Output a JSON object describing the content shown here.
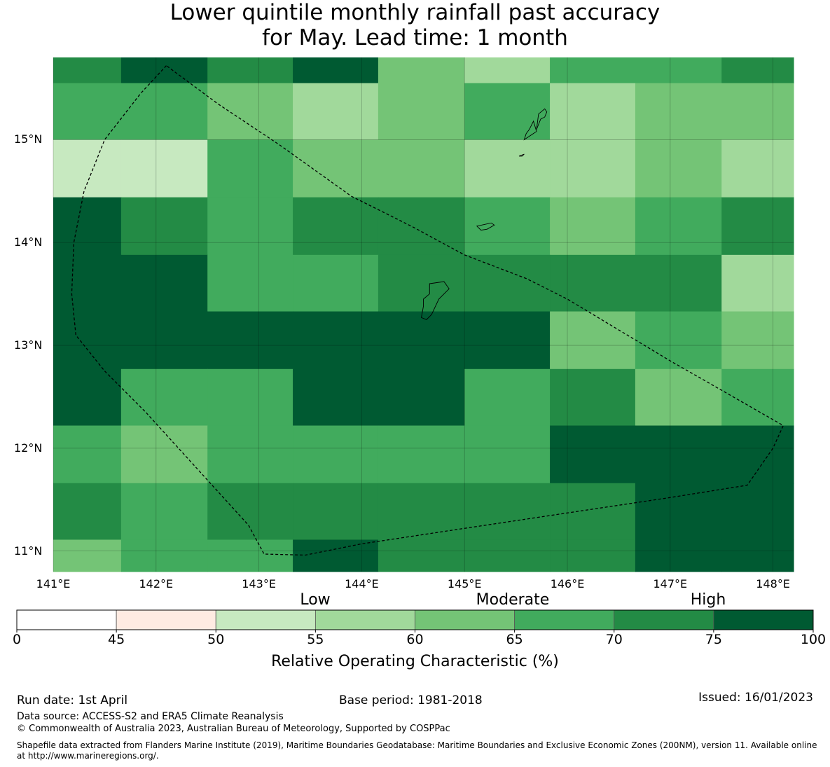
{
  "title_line1": "Lower quintile monthly rainfall past accuracy",
  "title_line2": "for May. Lead time: 1 month",
  "map": {
    "lon_min": 141.0,
    "lon_max": 148.2,
    "lat_min": 10.8,
    "lat_max": 15.8,
    "lat_ticks": [
      "15°N",
      "14°N",
      "13°N",
      "12°N",
      "11°N"
    ],
    "lat_tick_values": [
      15,
      14,
      13,
      12,
      11
    ],
    "lon_ticks": [
      "141°E",
      "142°E",
      "143°E",
      "144°E",
      "145°E",
      "146°E",
      "147°E",
      "148°E"
    ],
    "lon_tick_values": [
      141,
      142,
      143,
      144,
      145,
      146,
      147,
      148
    ],
    "cell_lon_edges": [
      141.0,
      141.66,
      142.5,
      143.33,
      144.16,
      145.0,
      145.83,
      146.66,
      147.5,
      148.2
    ],
    "cell_lat_edges": [
      15.8,
      15.55,
      15.0,
      14.44,
      13.88,
      13.33,
      12.77,
      12.22,
      11.66,
      11.11,
      10.8
    ],
    "roc_grid": [
      [
        72,
        78,
        72,
        78,
        62,
        57,
        67,
        67,
        72
      ],
      [
        67,
        67,
        62,
        57,
        62,
        67,
        57,
        62,
        62
      ],
      [
        53,
        53,
        67,
        62,
        62,
        57,
        57,
        62,
        57
      ],
      [
        78,
        72,
        67,
        72,
        72,
        67,
        62,
        67,
        72
      ],
      [
        78,
        78,
        67,
        67,
        72,
        72,
        72,
        72,
        57
      ],
      [
        78,
        78,
        78,
        78,
        78,
        78,
        62,
        67,
        62
      ],
      [
        78,
        67,
        67,
        78,
        78,
        67,
        72,
        62,
        67
      ],
      [
        67,
        62,
        67,
        67,
        67,
        67,
        78,
        78,
        78
      ],
      [
        72,
        67,
        72,
        72,
        72,
        72,
        72,
        78,
        78
      ],
      [
        62,
        67,
        67,
        78,
        72,
        72,
        72,
        78,
        78
      ]
    ],
    "eez_boundary": [
      [
        142.1,
        15.72
      ],
      [
        141.85,
        15.45
      ],
      [
        141.5,
        15.0
      ],
      [
        141.3,
        14.5
      ],
      [
        141.2,
        14.0
      ],
      [
        141.18,
        13.5
      ],
      [
        141.22,
        13.1
      ],
      [
        141.5,
        12.75
      ],
      [
        141.9,
        12.35
      ],
      [
        142.4,
        11.8
      ],
      [
        142.9,
        11.25
      ],
      [
        143.05,
        10.97
      ],
      [
        143.45,
        10.96
      ],
      [
        144.0,
        11.07
      ],
      [
        145.0,
        11.22
      ],
      [
        146.0,
        11.37
      ],
      [
        147.0,
        11.52
      ],
      [
        147.75,
        11.64
      ],
      [
        148.0,
        12.0
      ],
      [
        148.1,
        12.22
      ],
      [
        147.0,
        12.85
      ],
      [
        146.0,
        13.45
      ],
      [
        145.6,
        13.65
      ],
      [
        145.0,
        13.88
      ],
      [
        144.5,
        14.15
      ],
      [
        143.9,
        14.45
      ],
      [
        143.2,
        14.95
      ],
      [
        142.6,
        15.35
      ],
      [
        142.1,
        15.72
      ]
    ],
    "islands": [
      [
        [
          144.66,
          13.6
        ],
        [
          144.8,
          13.62
        ],
        [
          144.85,
          13.55
        ],
        [
          144.75,
          13.45
        ],
        [
          144.68,
          13.3
        ],
        [
          144.63,
          13.25
        ],
        [
          144.58,
          13.27
        ],
        [
          144.6,
          13.38
        ],
        [
          144.6,
          13.45
        ],
        [
          144.66,
          13.5
        ],
        [
          144.66,
          13.6
        ]
      ],
      [
        [
          145.12,
          14.16
        ],
        [
          145.26,
          14.19
        ],
        [
          145.29,
          14.17
        ],
        [
          145.22,
          14.13
        ],
        [
          145.16,
          14.12
        ],
        [
          145.12,
          14.16
        ]
      ],
      [
        [
          145.58,
          15.0
        ],
        [
          145.7,
          15.08
        ],
        [
          145.67,
          15.18
        ],
        [
          145.63,
          15.1
        ],
        [
          145.6,
          15.06
        ],
        [
          145.58,
          15.0
        ]
      ],
      [
        [
          145.7,
          15.1
        ],
        [
          145.74,
          15.2
        ],
        [
          145.78,
          15.22
        ],
        [
          145.8,
          15.27
        ],
        [
          145.78,
          15.3
        ],
        [
          145.72,
          15.25
        ],
        [
          145.7,
          15.1
        ]
      ],
      [
        [
          145.53,
          14.84
        ],
        [
          145.58,
          14.86
        ],
        [
          145.56,
          14.84
        ],
        [
          145.53,
          14.84
        ]
      ]
    ]
  },
  "category_labels": [
    "Low",
    "Moderate",
    "High"
  ],
  "colorbar": {
    "bounds": [
      0,
      45,
      50,
      55,
      60,
      65,
      70,
      75,
      100
    ],
    "tick_labels": [
      "0",
      "45",
      "50",
      "55",
      "60",
      "65",
      "70",
      "75",
      "100"
    ],
    "colors": [
      "#ffffff",
      "#ffebe2",
      "#c7e9c0",
      "#a1d99b",
      "#74c476",
      "#41ab5d",
      "#238b45",
      "#005a32"
    ],
    "title": "Relative Operating Characteristic (%)"
  },
  "footer": {
    "run_date": "Run date: 1st April",
    "base_period": "Base period: 1981-2018",
    "issued": "Issued: 16/01/2023",
    "data_source": "Data source: ACCESS-S2 and ERA5 Climate Reanalysis",
    "copyright": "© Commonwealth of Australia 2023, Australian Bureau of Meteorology, Supported by COSPPac",
    "shapefile": "Shapefile data extracted from Flanders Marine Institute (2019), Maritime Boundaries Geodatabase: Maritime Boundaries and Exclusive Economic Zones (200NM), version 11. Available online at http://www.marineregions.org/."
  }
}
